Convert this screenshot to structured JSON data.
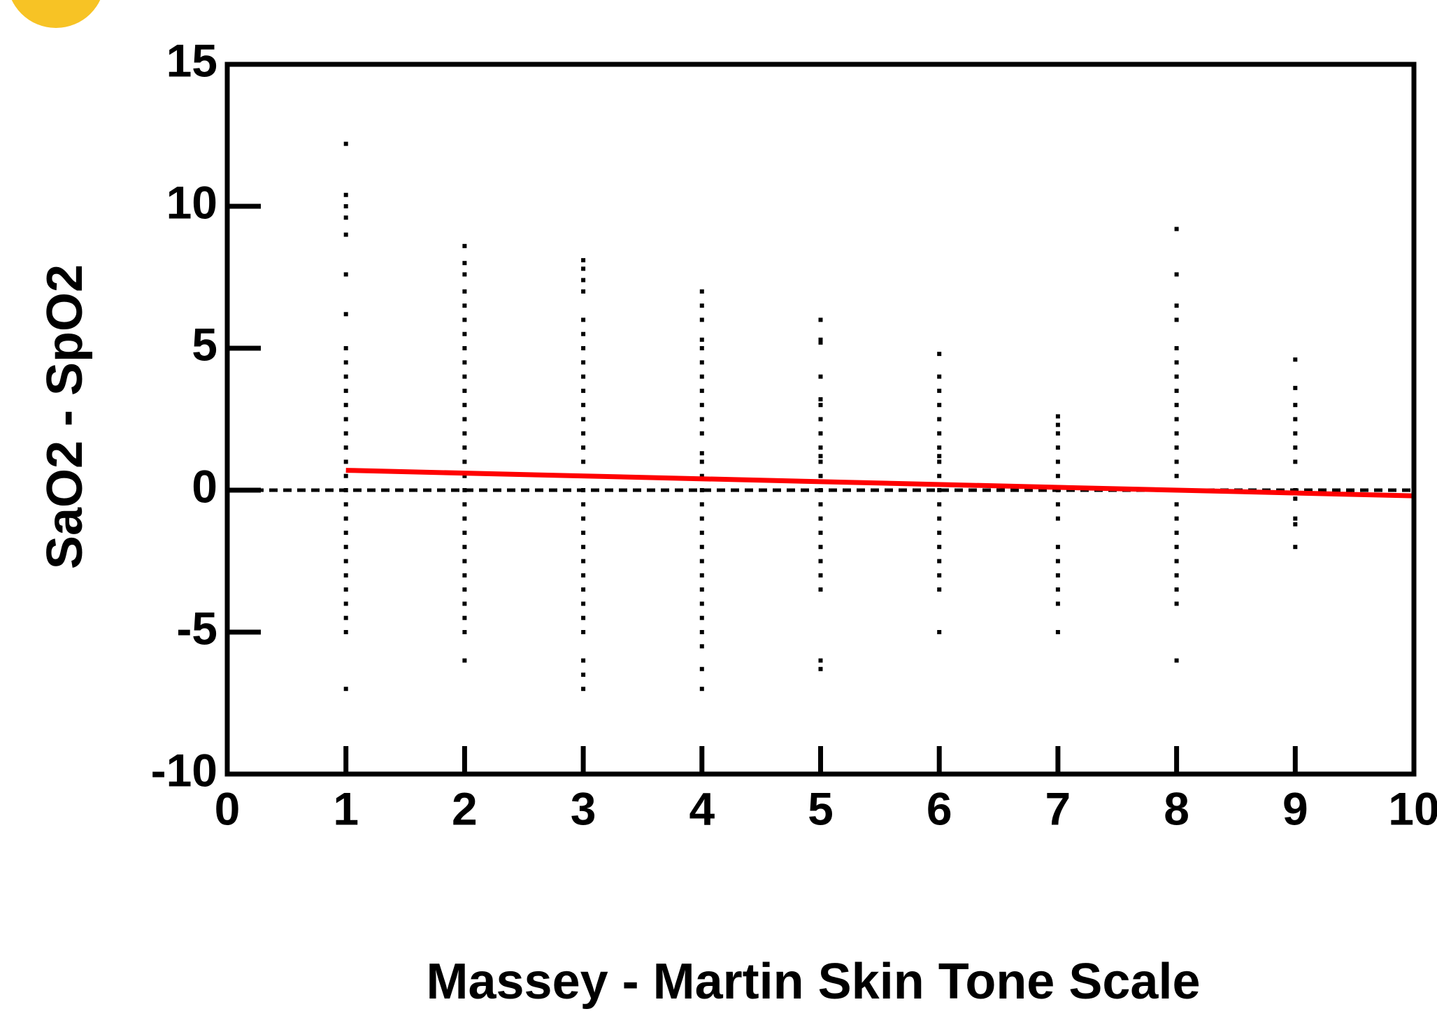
{
  "chart_data": {
    "type": "scatter",
    "xlabel": "Massey - Martin Skin Tone Scale",
    "ylabel": "SaO2 - SpO2",
    "xlim": [
      0,
      10
    ],
    "xticks": [
      0,
      1,
      2,
      3,
      4,
      5,
      6,
      7,
      8,
      9,
      10
    ],
    "ylim": [
      -10,
      15
    ],
    "yticks": [
      -10,
      -5,
      0,
      5,
      10,
      15
    ],
    "color": "#000000",
    "hline": 0,
    "series": [
      {
        "x": 1,
        "values": [
          12.2,
          10.4,
          10,
          9.6,
          9,
          7.6,
          6.2,
          5,
          4.5,
          4,
          3.5,
          3,
          2.5,
          2,
          1.5,
          1,
          0.5,
          0,
          -0.5,
          -1,
          -1.5,
          -2,
          -2.5,
          -3,
          -3.5,
          -4,
          -4.5,
          -5,
          -7
        ]
      },
      {
        "x": 2,
        "values": [
          8.6,
          8,
          7.6,
          7,
          6.5,
          6,
          5.5,
          5,
          4.5,
          4,
          3.5,
          3,
          2.5,
          2,
          1.5,
          1,
          0.5,
          0,
          -0.5,
          -1,
          -1.5,
          -2,
          -2.5,
          -3,
          -3.5,
          -4,
          -4.5,
          -5,
          -6
        ]
      },
      {
        "x": 3,
        "values": [
          8.1,
          7.8,
          7.4,
          7,
          6,
          5.5,
          5,
          4.5,
          4,
          3.5,
          3,
          2.5,
          2,
          1.5,
          1,
          0.5,
          0,
          -0.5,
          -1,
          -1.5,
          -2,
          -2.5,
          -3,
          -3.5,
          -4,
          -4.5,
          -5,
          -6,
          -6.5,
          -7
        ]
      },
      {
        "x": 4,
        "values": [
          7,
          6.5,
          6,
          5.3,
          5,
          4.5,
          4,
          3.5,
          3,
          2.5,
          2,
          1.3,
          1,
          0.5,
          0,
          -0.5,
          -1,
          -1.5,
          -2,
          -2.5,
          -3,
          -3.5,
          -4,
          -4.5,
          -5,
          -5.5,
          -6.3,
          -7
        ]
      },
      {
        "x": 5,
        "values": [
          6,
          5.3,
          5.2,
          4,
          3.2,
          3,
          2.5,
          2,
          1.5,
          1.2,
          1,
          0.5,
          0,
          -0.5,
          -1,
          -1.5,
          -2,
          -2.5,
          -3,
          -3.5,
          -6,
          -6.3
        ]
      },
      {
        "x": 6,
        "values": [
          4.8,
          4,
          3.5,
          3,
          2.5,
          2,
          1.5,
          1.2,
          1,
          0.5,
          0,
          -0.5,
          -1,
          -1.5,
          -2,
          -2.5,
          -3,
          -3.5,
          -5
        ]
      },
      {
        "x": 7,
        "values": [
          2.6,
          2.3,
          2,
          1.5,
          1,
          0.5,
          0,
          -0.5,
          -1,
          -2,
          -2.5,
          -3,
          -3.5,
          -4,
          -5
        ]
      },
      {
        "x": 8,
        "values": [
          9.2,
          7.6,
          6.5,
          6,
          5,
          4.5,
          4,
          3.5,
          3,
          2.5,
          2,
          1.5,
          1,
          0.5,
          0,
          -0.5,
          -1,
          -1.5,
          -2,
          -2.5,
          -3,
          -3.5,
          -4,
          -6
        ]
      },
      {
        "x": 9,
        "values": [
          4.6,
          3.6,
          3,
          2.5,
          2,
          1.5,
          1,
          0,
          -0.3,
          -1,
          -1.2,
          -2
        ]
      }
    ],
    "fit": {
      "color": "#ff0000",
      "x": [
        1,
        10
      ],
      "values": [
        0.7,
        -0.2
      ]
    }
  }
}
